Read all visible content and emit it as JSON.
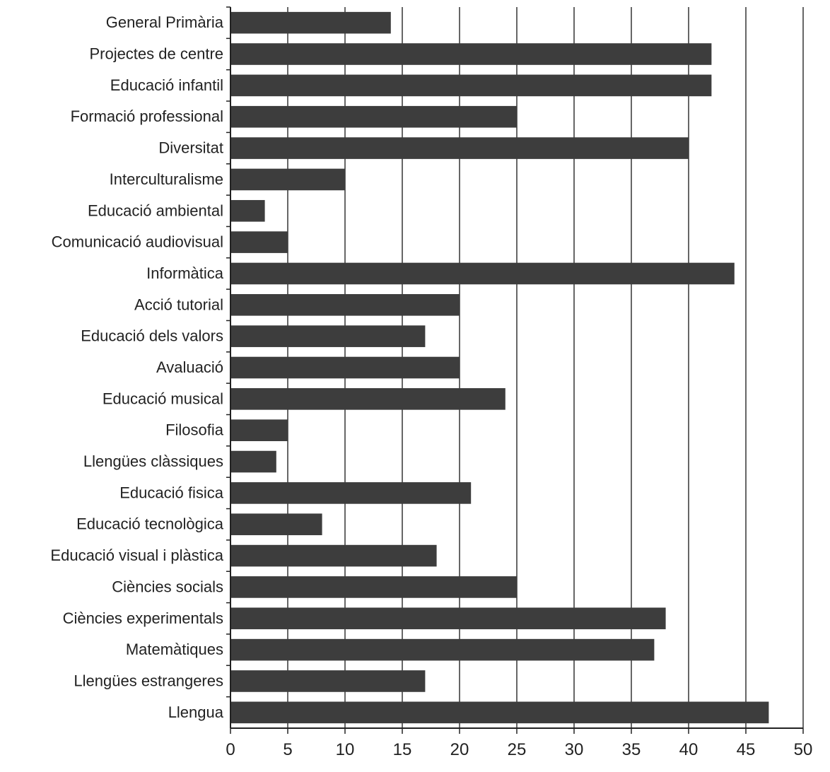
{
  "chart_data": {
    "type": "bar",
    "orientation": "horizontal",
    "categories": [
      "General Primària",
      "Projectes de centre",
      "Educació infantil",
      "Formació professional",
      "Diversitat",
      "Interculturalisme",
      "Educació ambiental",
      "Comunicació audiovisual",
      "Informàtica",
      "Acció tutorial",
      "Educació dels valors",
      "Avaluació",
      "Educació musical",
      "Filosofia",
      "Llengües clàssiques",
      "Educació fisica",
      "Educació tecnològica",
      "Educació visual i plàstica",
      "Ciències socials",
      "Ciències experimentals",
      "Matemàtiques",
      "Llengües estrangeres",
      "Llengua"
    ],
    "values": [
      14,
      42,
      42,
      25,
      40,
      10,
      3,
      5,
      44,
      20,
      17,
      20,
      24,
      5,
      4,
      21,
      8,
      18,
      25,
      38,
      37,
      17,
      47
    ],
    "xlim": [
      0,
      50
    ],
    "xticks": [
      "0",
      "5",
      "10",
      "15",
      "20",
      "25",
      "30",
      "35",
      "40",
      "45",
      "50"
    ],
    "grid": "vertical",
    "bar_color": "#3d3d3d",
    "title": "",
    "xlabel": "",
    "ylabel": ""
  }
}
